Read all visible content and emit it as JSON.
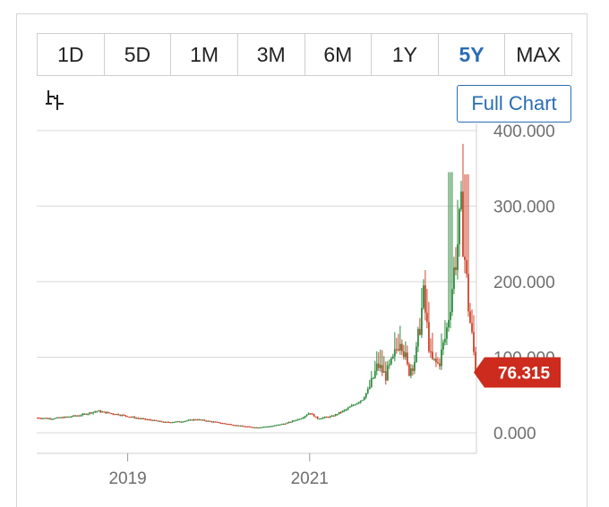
{
  "tabs": [
    {
      "label": "1D",
      "active": false
    },
    {
      "label": "5D",
      "active": false
    },
    {
      "label": "1M",
      "active": false
    },
    {
      "label": "3M",
      "active": false
    },
    {
      "label": "6M",
      "active": false
    },
    {
      "label": "1Y",
      "active": false
    },
    {
      "label": "5Y",
      "active": true
    },
    {
      "label": "MAX",
      "active": false
    }
  ],
  "toolbar": {
    "tool_icon": "candlestick-tool-icon",
    "full_chart_label": "Full Chart"
  },
  "colors": {
    "accent": "#2a6db5",
    "up": "#2e8b3e",
    "down": "#d0442c",
    "badge": "#cc2b1d",
    "grid": "#d9d9d9"
  },
  "chart_data": {
    "type": "candlestick",
    "title": "",
    "xlabel": "",
    "ylabel": "",
    "ylim": [
      0,
      400
    ],
    "y_ticks": [
      "0.000",
      "100.000",
      "200.000",
      "300.000",
      "400.000"
    ],
    "x_ticks": [
      "2019",
      "2021"
    ],
    "x_range": [
      "2018-01",
      "2022-11"
    ],
    "last_price": "76.315",
    "last_value": 76.315,
    "grid": true,
    "series": [
      {
        "date": "2018-01",
        "close": 20
      },
      {
        "date": "2018-03",
        "close": 19
      },
      {
        "date": "2018-05",
        "close": 21
      },
      {
        "date": "2018-07",
        "close": 24
      },
      {
        "date": "2018-09",
        "close": 29
      },
      {
        "date": "2018-10",
        "close": 27
      },
      {
        "date": "2018-12",
        "close": 24
      },
      {
        "date": "2019-02",
        "close": 20
      },
      {
        "date": "2019-04",
        "close": 17
      },
      {
        "date": "2019-06",
        "close": 14
      },
      {
        "date": "2019-08",
        "close": 15
      },
      {
        "date": "2019-10",
        "close": 18
      },
      {
        "date": "2019-12",
        "close": 15
      },
      {
        "date": "2020-02",
        "close": 12
      },
      {
        "date": "2020-04",
        "close": 9
      },
      {
        "date": "2020-06",
        "close": 7
      },
      {
        "date": "2020-08",
        "close": 9
      },
      {
        "date": "2020-10",
        "close": 13
      },
      {
        "date": "2020-12",
        "close": 20
      },
      {
        "date": "2021-01",
        "close": 27
      },
      {
        "date": "2021-02",
        "close": 19
      },
      {
        "date": "2021-04",
        "close": 22
      },
      {
        "date": "2021-06",
        "close": 32
      },
      {
        "date": "2021-08",
        "close": 45
      },
      {
        "date": "2021-09",
        "close": 62
      },
      {
        "date": "2021-10",
        "close": 90
      },
      {
        "date": "2021-11",
        "close": 75
      },
      {
        "date": "2021-12",
        "close": 95
      },
      {
        "date": "2022-01",
        "close": 130
      },
      {
        "date": "2022-02",
        "close": 80
      },
      {
        "date": "2022-03",
        "close": 100
      },
      {
        "date": "2022-04",
        "close": 180
      },
      {
        "date": "2022-05",
        "close": 95
      },
      {
        "date": "2022-06",
        "close": 90
      },
      {
        "date": "2022-07",
        "close": 130
      },
      {
        "date": "2022-08",
        "close": 210
      },
      {
        "date": "2022-09",
        "close": 290
      },
      {
        "date": "2022-10",
        "close": 160
      },
      {
        "date": "2022-11",
        "close": 76.315
      }
    ]
  }
}
